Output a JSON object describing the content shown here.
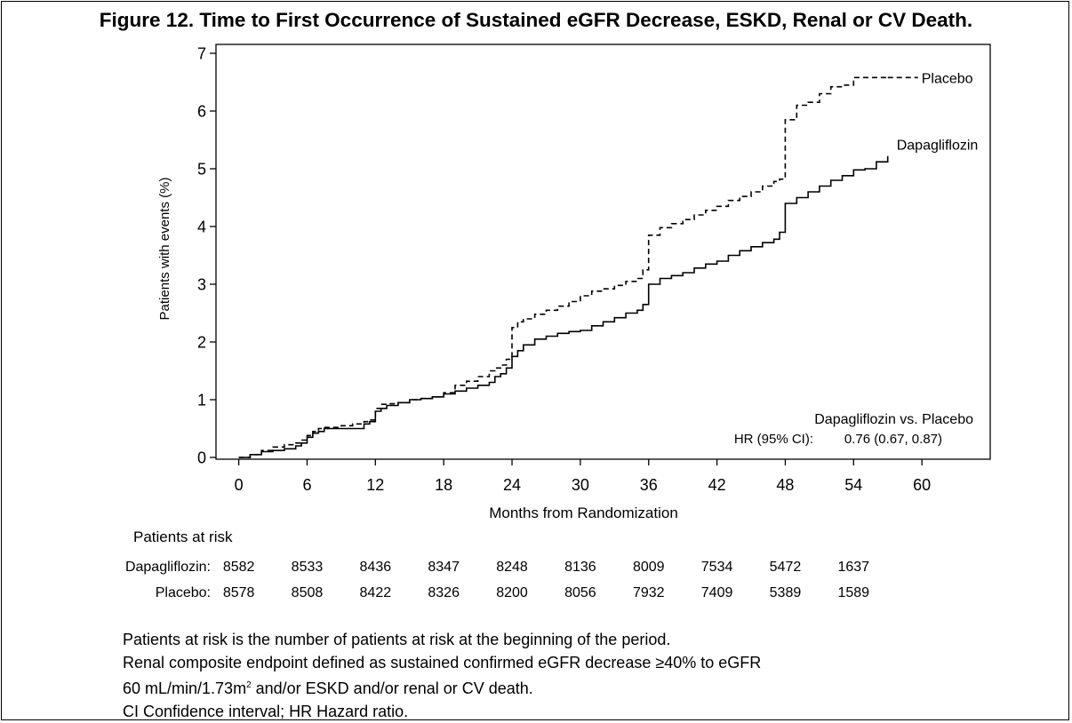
{
  "title": "Figure 12. Time to First Occurrence of Sustained eGFR Decrease, ESKD, Renal or CV Death.",
  "chart_data": {
    "type": "line",
    "chart_style": "step (Kaplan-Meier cumulative incidence)",
    "xlabel": "Months from Randomization",
    "ylabel": "Patients with events (%)",
    "xlim": [
      -2,
      66
    ],
    "ylim": [
      0,
      7
    ],
    "xticks": [
      0,
      6,
      12,
      18,
      24,
      30,
      36,
      42,
      48,
      54,
      60
    ],
    "yticks": [
      0,
      1,
      2,
      3,
      4,
      5,
      6,
      7
    ],
    "grid": false,
    "series": [
      {
        "name": "Dapagliflozin",
        "line_style": "solid",
        "color": "#000000",
        "x": [
          0,
          1,
          2,
          3,
          4,
          5,
          5.5,
          6,
          6.5,
          7,
          7.5,
          8,
          9,
          10,
          11,
          11.5,
          12,
          12.5,
          13,
          14,
          15,
          16,
          17,
          18,
          19,
          20,
          21,
          22,
          22.5,
          23,
          23.5,
          24,
          24.5,
          25,
          26,
          27,
          28,
          29,
          30,
          31,
          32,
          33,
          34,
          35,
          35.5,
          36,
          37,
          38,
          39,
          40,
          41,
          42,
          43,
          44,
          45,
          46,
          47,
          47.5,
          48,
          49,
          50,
          51,
          52,
          53,
          54,
          55,
          56,
          57
        ],
        "y": [
          0.0,
          0.05,
          0.1,
          0.12,
          0.15,
          0.2,
          0.25,
          0.35,
          0.42,
          0.45,
          0.5,
          0.5,
          0.5,
          0.5,
          0.58,
          0.62,
          0.8,
          0.85,
          0.9,
          0.95,
          1.0,
          1.02,
          1.05,
          1.1,
          1.15,
          1.2,
          1.25,
          1.3,
          1.4,
          1.45,
          1.55,
          1.75,
          1.85,
          1.95,
          2.05,
          2.1,
          2.15,
          2.18,
          2.2,
          2.28,
          2.35,
          2.42,
          2.5,
          2.55,
          2.65,
          3.0,
          3.1,
          3.15,
          3.2,
          3.28,
          3.35,
          3.4,
          3.5,
          3.58,
          3.65,
          3.72,
          3.78,
          3.9,
          4.4,
          4.5,
          4.6,
          4.7,
          4.8,
          4.88,
          4.98,
          5.0,
          5.12,
          5.22
        ]
      },
      {
        "name": "Placebo",
        "line_style": "dashed",
        "color": "#000000",
        "x": [
          0,
          1,
          2,
          3,
          4,
          5,
          5.5,
          6,
          6.5,
          7,
          7.5,
          8,
          9,
          10,
          11,
          11.5,
          12,
          12.5,
          13,
          14,
          15,
          16,
          17,
          18,
          19,
          20,
          21,
          22,
          22.5,
          23,
          23.5,
          24,
          24.5,
          25,
          26,
          27,
          28,
          29,
          30,
          31,
          32,
          33,
          34,
          35,
          35.5,
          36,
          37,
          38,
          39,
          40,
          41,
          42,
          43,
          44,
          45,
          46,
          47,
          47.5,
          48,
          49,
          50,
          51,
          52,
          53,
          54,
          55,
          56,
          57
        ],
        "y": [
          0.0,
          0.05,
          0.12,
          0.18,
          0.22,
          0.25,
          0.3,
          0.38,
          0.45,
          0.5,
          0.52,
          0.52,
          0.55,
          0.58,
          0.62,
          0.65,
          0.85,
          0.92,
          0.93,
          0.95,
          1.0,
          1.02,
          1.05,
          1.12,
          1.25,
          1.32,
          1.4,
          1.5,
          1.55,
          1.6,
          1.7,
          2.25,
          2.35,
          2.4,
          2.48,
          2.55,
          2.62,
          2.7,
          2.8,
          2.88,
          2.92,
          2.98,
          3.05,
          3.1,
          3.25,
          3.85,
          3.98,
          4.05,
          4.12,
          4.2,
          4.28,
          4.35,
          4.45,
          4.52,
          4.6,
          4.7,
          4.78,
          4.82,
          5.85,
          6.1,
          6.15,
          6.3,
          6.42,
          6.45,
          6.58,
          6.58,
          6.58,
          6.58
        ]
      }
    ],
    "annotation": {
      "line1": "Dapagliflozin vs. Placebo",
      "hr_label": "HR (95% CI):",
      "hr_value": "0.76 (0.67, 0.87)"
    },
    "risk_table": {
      "heading": "Patients at risk",
      "rows": [
        {
          "label": "Dapagliflozin:",
          "values": [
            "8582",
            "8533",
            "8436",
            "8347",
            "8248",
            "8136",
            "8009",
            "7534",
            "5472",
            "1637"
          ]
        },
        {
          "label": "Placebo:",
          "values": [
            "8578",
            "8508",
            "8422",
            "8326",
            "8200",
            "8056",
            "7932",
            "7409",
            "5389",
            "1589"
          ]
        }
      ]
    }
  },
  "notes": {
    "line1": "Patients at risk is the number of patients at risk at the beginning of the period.",
    "line2": "Renal composite endpoint defined as sustained confirmed eGFR decrease ≥40% to eGFR",
    "line3_pre": "60 mL/min/1.73m",
    "line3_sup": "2",
    "line3_post": " and/or ESKD and/or renal or CV death.",
    "line4": "CI Confidence interval; HR Hazard ratio."
  }
}
